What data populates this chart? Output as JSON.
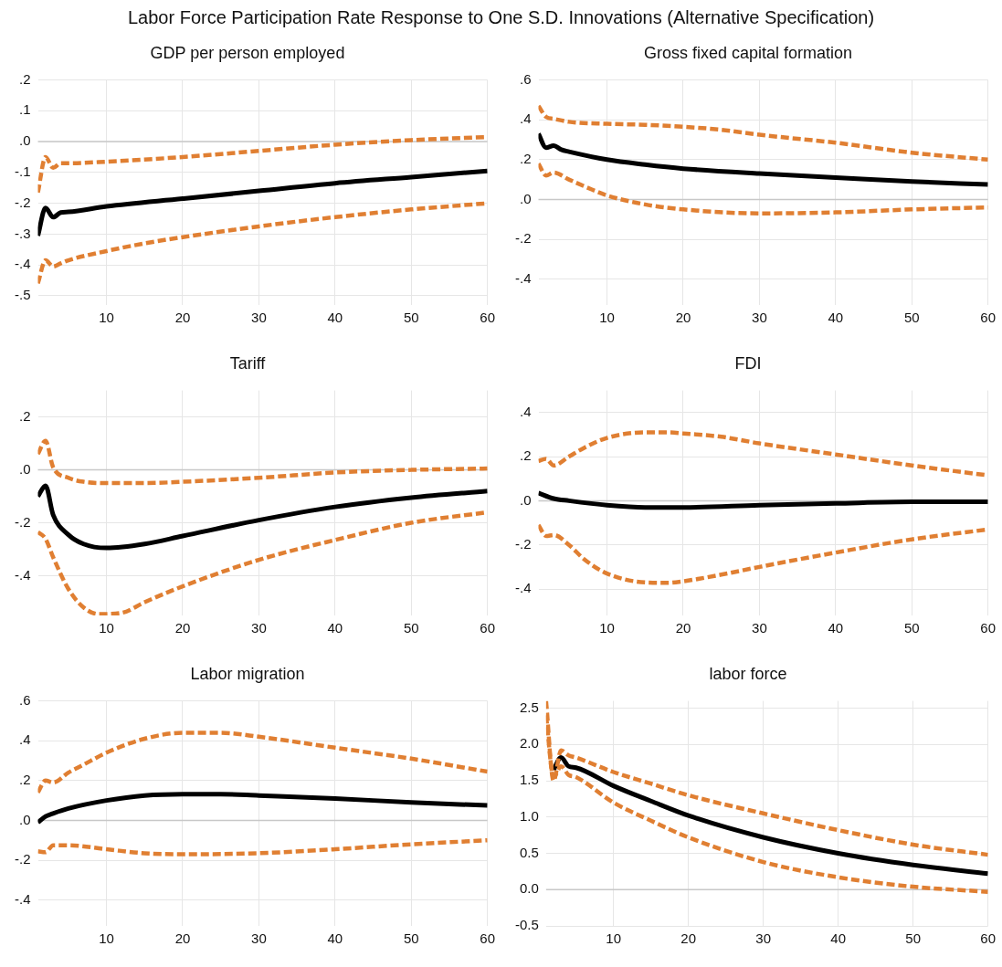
{
  "chart_data": [
    {
      "type": "line",
      "title": "GDP per person employed",
      "annotations": [
        "Labor Force Participation Rate Response to One S.D. Innovations (Alternative Specification)"
      ],
      "xlim": [
        1,
        60
      ],
      "xticks": [
        10,
        20,
        30,
        40,
        50,
        60
      ],
      "ylim": [
        -0.53,
        0.2
      ],
      "yticks": [
        {
          "value": 0.2,
          "label": ".2"
        },
        {
          "value": 0.1,
          "label": ".1"
        },
        {
          "value": 0,
          "label": ".0"
        },
        {
          "value": -0.1,
          "label": "-.1"
        },
        {
          "value": -0.2,
          "label": "-.2"
        },
        {
          "value": -0.3,
          "label": "-.3"
        },
        {
          "value": -0.4,
          "label": "-.4"
        },
        {
          "value": -0.5,
          "label": "-.5"
        }
      ],
      "grid": true,
      "marker": "none",
      "ref_lines": [
        {
          "axis": "y",
          "value": 0,
          "color": "#c8c8c8"
        }
      ],
      "series": [
        {
          "color": "#000000",
          "line_style": "solid",
          "x": [
            1,
            2,
            3,
            4,
            5,
            10,
            20,
            30,
            40,
            50,
            60
          ],
          "values": [
            -0.305,
            -0.215,
            -0.245,
            -0.23,
            -0.228,
            -0.21,
            -0.185,
            -0.16,
            -0.135,
            -0.115,
            -0.095
          ]
        },
        {
          "color": "#e07f32",
          "line_style": "dashed",
          "x": [
            1,
            2,
            3,
            4,
            5,
            10,
            20,
            30,
            40,
            50,
            60
          ],
          "values": [
            -0.165,
            -0.05,
            -0.085,
            -0.07,
            -0.07,
            -0.065,
            -0.05,
            -0.03,
            -0.01,
            0.005,
            0.015
          ]
        },
        {
          "color": "#e07f32",
          "line_style": "dashed",
          "x": [
            1,
            2,
            3,
            4,
            5,
            10,
            15,
            20,
            30,
            40,
            50,
            60
          ],
          "values": [
            -0.46,
            -0.385,
            -0.405,
            -0.395,
            -0.385,
            -0.355,
            -0.33,
            -0.31,
            -0.275,
            -0.245,
            -0.22,
            -0.2
          ]
        }
      ]
    },
    {
      "type": "line",
      "title": "Gross fixed capital formation",
      "xlim": [
        1,
        60
      ],
      "xticks": [
        10,
        20,
        30,
        40,
        50,
        60
      ],
      "ylim": [
        -0.53,
        0.6
      ],
      "yticks": [
        {
          "value": 0.6,
          "label": ".6"
        },
        {
          "value": 0.4,
          "label": ".4"
        },
        {
          "value": 0.2,
          "label": ".2"
        },
        {
          "value": 0,
          "label": ".0"
        },
        {
          "value": -0.2,
          "label": "-.2"
        },
        {
          "value": -0.4,
          "label": "-.4"
        }
      ],
      "grid": true,
      "marker": "none",
      "ref_lines": [
        {
          "axis": "y",
          "value": 0,
          "color": "#c8c8c8"
        }
      ],
      "series": [
        {
          "color": "#000000",
          "line_style": "solid",
          "x": [
            1,
            2,
            3,
            4,
            5,
            10,
            15,
            20,
            30,
            40,
            50,
            60
          ],
          "values": [
            0.33,
            0.26,
            0.27,
            0.25,
            0.24,
            0.2,
            0.175,
            0.155,
            0.13,
            0.11,
            0.09,
            0.075
          ]
        },
        {
          "color": "#e07f32",
          "line_style": "dashed",
          "x": [
            1,
            2,
            3,
            5,
            10,
            15,
            20,
            25,
            30,
            40,
            50,
            60
          ],
          "values": [
            0.47,
            0.415,
            0.405,
            0.39,
            0.38,
            0.375,
            0.365,
            0.35,
            0.325,
            0.285,
            0.235,
            0.2
          ]
        },
        {
          "color": "#e07f32",
          "line_style": "dashed",
          "x": [
            1,
            2,
            3,
            5,
            8,
            10,
            15,
            20,
            30,
            40,
            50,
            60
          ],
          "values": [
            0.18,
            0.12,
            0.135,
            0.1,
            0.05,
            0.02,
            -0.025,
            -0.05,
            -0.07,
            -0.065,
            -0.05,
            -0.04
          ]
        }
      ]
    },
    {
      "type": "line",
      "title": "Tariff",
      "xlim": [
        1,
        60
      ],
      "xticks": [
        10,
        20,
        30,
        40,
        50,
        60
      ],
      "ylim": [
        -0.55,
        0.3
      ],
      "yticks": [
        {
          "value": 0.2,
          "label": ".2"
        },
        {
          "value": 0,
          "label": ".0"
        },
        {
          "value": -0.2,
          "label": "-.2"
        },
        {
          "value": -0.4,
          "label": "-.4"
        }
      ],
      "grid": true,
      "marker": "none",
      "ref_lines": [
        {
          "axis": "y",
          "value": 0,
          "color": "#c8c8c8"
        }
      ],
      "series": [
        {
          "color": "#000000",
          "line_style": "solid",
          "x": [
            1,
            2,
            3,
            5,
            7,
            10,
            15,
            20,
            30,
            40,
            50,
            60
          ],
          "values": [
            -0.1,
            -0.06,
            -0.17,
            -0.245,
            -0.28,
            -0.295,
            -0.28,
            -0.25,
            -0.19,
            -0.14,
            -0.105,
            -0.08
          ]
        },
        {
          "color": "#e07f32",
          "line_style": "dashed",
          "x": [
            1,
            2,
            3,
            5,
            7,
            10,
            15,
            20,
            30,
            40,
            50,
            60
          ],
          "values": [
            0.06,
            0.11,
            0.01,
            -0.03,
            -0.045,
            -0.05,
            -0.05,
            -0.045,
            -0.03,
            -0.01,
            0.0,
            0.005
          ]
        },
        {
          "color": "#e07f32",
          "line_style": "dashed",
          "x": [
            1,
            2,
            3,
            5,
            7,
            9,
            12,
            15,
            20,
            30,
            40,
            50,
            60
          ],
          "values": [
            -0.235,
            -0.26,
            -0.33,
            -0.45,
            -0.52,
            -0.545,
            -0.54,
            -0.5,
            -0.44,
            -0.34,
            -0.265,
            -0.2,
            -0.16
          ]
        }
      ]
    },
    {
      "type": "line",
      "title": "FDI",
      "xlim": [
        1,
        60
      ],
      "xticks": [
        10,
        20,
        30,
        40,
        50,
        60
      ],
      "ylim": [
        -0.52,
        0.5
      ],
      "yticks": [
        {
          "value": 0.4,
          "label": ".4"
        },
        {
          "value": 0.2,
          "label": ".2"
        },
        {
          "value": 0,
          "label": ".0"
        },
        {
          "value": -0.2,
          "label": "-.2"
        },
        {
          "value": -0.4,
          "label": "-.4"
        }
      ],
      "grid": true,
      "marker": "none",
      "ref_lines": [
        {
          "axis": "y",
          "value": 0,
          "color": "#c8c8c8"
        }
      ],
      "series": [
        {
          "color": "#000000",
          "line_style": "solid",
          "x": [
            1,
            3,
            5,
            10,
            15,
            20,
            30,
            40,
            50,
            60
          ],
          "values": [
            0.035,
            0.01,
            0.0,
            -0.02,
            -0.03,
            -0.03,
            -0.02,
            -0.012,
            -0.005,
            -0.005
          ]
        },
        {
          "color": "#e07f32",
          "line_style": "dashed",
          "x": [
            1,
            2,
            3,
            5,
            7,
            10,
            15,
            18,
            20,
            25,
            30,
            40,
            50,
            60
          ],
          "values": [
            0.18,
            0.19,
            0.16,
            0.2,
            0.24,
            0.285,
            0.31,
            0.31,
            0.305,
            0.29,
            0.26,
            0.21,
            0.16,
            0.115
          ]
        },
        {
          "color": "#e07f32",
          "line_style": "dashed",
          "x": [
            1,
            2,
            3,
            5,
            7,
            10,
            15,
            18,
            20,
            25,
            30,
            40,
            50,
            60
          ],
          "values": [
            -0.11,
            -0.16,
            -0.155,
            -0.2,
            -0.265,
            -0.33,
            -0.37,
            -0.372,
            -0.365,
            -0.335,
            -0.3,
            -0.235,
            -0.175,
            -0.13
          ]
        }
      ]
    },
    {
      "type": "line",
      "title": "Labor migration",
      "xlim": [
        1,
        60
      ],
      "xticks": [
        10,
        20,
        30,
        40,
        50,
        60
      ],
      "ylim": [
        -0.53,
        0.6
      ],
      "yticks": [
        {
          "value": 0.6,
          "label": ".6"
        },
        {
          "value": 0.4,
          "label": ".4"
        },
        {
          "value": 0.2,
          "label": ".2"
        },
        {
          "value": 0,
          "label": ".0"
        },
        {
          "value": -0.2,
          "label": "-.2"
        },
        {
          "value": -0.4,
          "label": "-.4"
        }
      ],
      "grid": true,
      "marker": "none",
      "ref_lines": [
        {
          "axis": "y",
          "value": 0,
          "color": "#c8c8c8"
        }
      ],
      "series": [
        {
          "color": "#000000",
          "line_style": "solid",
          "x": [
            1,
            2,
            3,
            5,
            10,
            15,
            20,
            25,
            30,
            40,
            50,
            60
          ],
          "values": [
            -0.01,
            0.02,
            0.035,
            0.06,
            0.1,
            0.125,
            0.132,
            0.132,
            0.125,
            0.11,
            0.09,
            0.075
          ]
        },
        {
          "color": "#e07f32",
          "line_style": "dashed",
          "x": [
            1,
            2,
            3,
            5,
            7,
            10,
            15,
            20,
            25,
            30,
            40,
            50,
            60
          ],
          "values": [
            0.14,
            0.2,
            0.19,
            0.24,
            0.28,
            0.34,
            0.41,
            0.44,
            0.44,
            0.42,
            0.365,
            0.31,
            0.245
          ]
        },
        {
          "color": "#e07f32",
          "line_style": "dashed",
          "x": [
            1,
            2,
            3,
            5,
            10,
            15,
            20,
            30,
            40,
            50,
            60
          ],
          "values": [
            -0.155,
            -0.16,
            -0.125,
            -0.125,
            -0.145,
            -0.165,
            -0.17,
            -0.165,
            -0.145,
            -0.12,
            -0.1
          ]
        }
      ]
    },
    {
      "type": "line",
      "title": "labor force",
      "xlim": [
        1,
        60
      ],
      "xticks": [
        10,
        20,
        30,
        40,
        50,
        60
      ],
      "ylim": [
        -0.5,
        2.6
      ],
      "yticks": [
        {
          "value": 2.5,
          "label": "2.5"
        },
        {
          "value": 2,
          "label": "2.0"
        },
        {
          "value": 1.5,
          "label": "1.5"
        },
        {
          "value": 1,
          "label": "1.0"
        },
        {
          "value": 0.5,
          "label": "0.5"
        },
        {
          "value": 0,
          "label": "0.0"
        },
        {
          "value": -0.5,
          "label": "-0.5"
        }
      ],
      "grid": true,
      "marker": "none",
      "ref_lines": [
        {
          "axis": "y",
          "value": 0,
          "color": "#c8c8c8"
        }
      ],
      "series": [
        {
          "color": "#000000",
          "line_style": "solid",
          "x": [
            2,
            3,
            4,
            5,
            10,
            15,
            20,
            30,
            40,
            50,
            60
          ],
          "values": [
            1.65,
            1.82,
            1.7,
            1.68,
            1.43,
            1.22,
            1.02,
            0.72,
            0.5,
            0.34,
            0.22
          ]
        },
        {
          "color": "#e07f32",
          "line_style": "dashed",
          "x": [
            1,
            2,
            3,
            4,
            5,
            10,
            15,
            20,
            30,
            40,
            50,
            60
          ],
          "values": [
            2.6,
            1.5,
            1.92,
            1.85,
            1.82,
            1.62,
            1.46,
            1.3,
            1.05,
            0.82,
            0.62,
            0.48
          ]
        },
        {
          "color": "#e07f32",
          "line_style": "dashed",
          "x": [
            1,
            2,
            3,
            4,
            5,
            10,
            15,
            20,
            30,
            40,
            50,
            60
          ],
          "values": [
            2.4,
            1.55,
            1.7,
            1.58,
            1.55,
            1.2,
            0.95,
            0.72,
            0.38,
            0.17,
            0.04,
            -0.03
          ]
        }
      ]
    }
  ]
}
